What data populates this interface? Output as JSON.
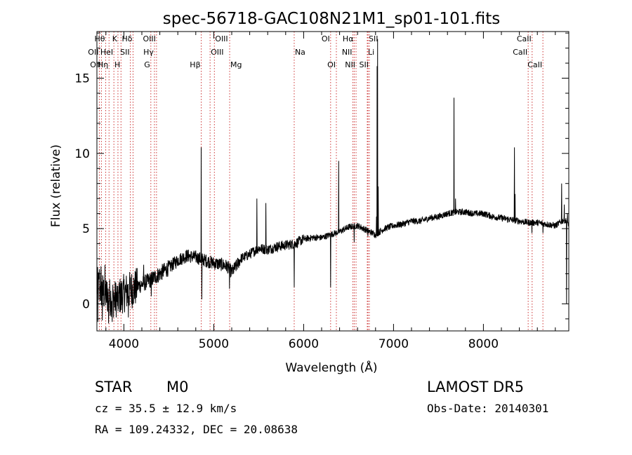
{
  "footer": {
    "object_class": "STAR",
    "subclass": "M0",
    "survey": "LAMOST DR5",
    "redshift": "cz = 35.5 ± 12.9 km/s",
    "obs_date": "Obs-Date: 20140301",
    "coords": "RA = 109.24332, DEC =  20.08638"
  },
  "chart_data": {
    "type": "line",
    "title": "spec-56718-GAC108N21M1_sp01-101.fits",
    "xlabel": "Wavelength (Å)",
    "ylabel": "Flux (relative)",
    "xlim": [
      3700,
      8950
    ],
    "ylim": [
      -1.8,
      18.1
    ],
    "x_ticks": [
      4000,
      5000,
      6000,
      7000,
      8000
    ],
    "y_ticks": [
      0,
      5,
      10,
      15
    ],
    "line_color": "#000000",
    "continuum": [
      [
        3700,
        1.2
      ],
      [
        3800,
        0.6
      ],
      [
        3900,
        0.3
      ],
      [
        4000,
        0.7
      ],
      [
        4100,
        1.0
      ],
      [
        4200,
        1.3
      ],
      [
        4300,
        1.6
      ],
      [
        4400,
        2.0
      ],
      [
        4500,
        2.4
      ],
      [
        4600,
        2.9
      ],
      [
        4700,
        3.2
      ],
      [
        4800,
        3.1
      ],
      [
        4900,
        2.9
      ],
      [
        5000,
        2.7
      ],
      [
        5100,
        2.6
      ],
      [
        5150,
        2.5
      ],
      [
        5200,
        2.1
      ],
      [
        5250,
        2.5
      ],
      [
        5300,
        3.0
      ],
      [
        5400,
        3.3
      ],
      [
        5500,
        3.7
      ],
      [
        5600,
        3.6
      ],
      [
        5700,
        3.8
      ],
      [
        5800,
        3.9
      ],
      [
        5900,
        4.0
      ],
      [
        6000,
        4.3
      ],
      [
        6100,
        4.4
      ],
      [
        6200,
        4.4
      ],
      [
        6300,
        4.6
      ],
      [
        6400,
        4.8
      ],
      [
        6500,
        5.1
      ],
      [
        6600,
        5.2
      ],
      [
        6700,
        4.9
      ],
      [
        6800,
        4.6
      ],
      [
        6900,
        5.0
      ],
      [
        7000,
        5.2
      ],
      [
        7100,
        5.3
      ],
      [
        7200,
        5.5
      ],
      [
        7300,
        5.5
      ],
      [
        7400,
        5.7
      ],
      [
        7500,
        5.8
      ],
      [
        7600,
        6.0
      ],
      [
        7700,
        6.1
      ],
      [
        7800,
        6.1
      ],
      [
        7900,
        6.0
      ],
      [
        8000,
        6.0
      ],
      [
        8100,
        5.8
      ],
      [
        8200,
        5.7
      ],
      [
        8300,
        5.6
      ],
      [
        8400,
        5.5
      ],
      [
        8500,
        5.4
      ],
      [
        8600,
        5.4
      ],
      [
        8700,
        5.3
      ],
      [
        8800,
        5.2
      ],
      [
        8900,
        5.6
      ],
      [
        8950,
        5.3
      ]
    ],
    "features": [
      {
        "x": 3710,
        "y": -1.2
      },
      {
        "x": 3728,
        "y": 2.3
      },
      {
        "x": 3745,
        "y": 2.5
      },
      {
        "x": 3760,
        "y": -1.1
      },
      {
        "x": 3790,
        "y": 2.6
      },
      {
        "x": 3830,
        "y": -1.3
      },
      {
        "x": 3870,
        "y": -1.2
      },
      {
        "x": 3935,
        "y": -0.5
      },
      {
        "x": 3970,
        "y": -0.4
      },
      {
        "x": 4050,
        "y": -0.9
      },
      {
        "x": 4220,
        "y": 2.6
      },
      {
        "x": 4304,
        "y": 0.5
      },
      {
        "x": 4861,
        "y": 10.4
      },
      {
        "x": 4868,
        "y": 0.3
      },
      {
        "x": 5175,
        "y": 1.0
      },
      {
        "x": 5480,
        "y": 7.0
      },
      {
        "x": 5580,
        "y": 6.7
      },
      {
        "x": 5895,
        "y": 1.1
      },
      {
        "x": 6300,
        "y": 1.1
      },
      {
        "x": 6390,
        "y": 9.5
      },
      {
        "x": 6563,
        "y": 4.1
      },
      {
        "x": 6715,
        "y": 4.5
      },
      {
        "x": 6810,
        "y": 5.8
      },
      {
        "x": 6817,
        "y": 15.8
      },
      {
        "x": 6822,
        "y": 17.6
      },
      {
        "x": 6829,
        "y": 7.8
      },
      {
        "x": 7672,
        "y": 13.7
      },
      {
        "x": 7690,
        "y": 7.0
      },
      {
        "x": 8345,
        "y": 10.4
      },
      {
        "x": 8352,
        "y": 7.3
      },
      {
        "x": 8540,
        "y": 4.7
      },
      {
        "x": 8662,
        "y": 4.7
      },
      {
        "x": 8870,
        "y": 8.0
      },
      {
        "x": 8900,
        "y": 6.6
      },
      {
        "x": 8925,
        "y": 0.0
      },
      {
        "x": 8935,
        "y": 6.0
      }
    ],
    "line_markers": [
      {
        "x": 3727,
        "label": "OII",
        "row": 1,
        "side": "left"
      },
      {
        "x": 3750,
        "label": "OII",
        "row": 2,
        "side": "left"
      },
      {
        "x": 3798,
        "label": "Hθ",
        "row": 0,
        "side": "left"
      },
      {
        "x": 3835,
        "label": "Hη",
        "row": 2,
        "side": "left"
      },
      {
        "x": 3889,
        "label": "HeI",
        "row": 1,
        "side": "left"
      },
      {
        "x": 3934,
        "label": "K",
        "row": 0,
        "side": "left"
      },
      {
        "x": 3968,
        "label": "H",
        "row": 2,
        "side": "left"
      },
      {
        "x": 4072,
        "label": "SII",
        "row": 1,
        "side": "left"
      },
      {
        "x": 4102,
        "label": "Hδ",
        "row": 0,
        "side": "left"
      },
      {
        "x": 4300,
        "label": "G",
        "row": 2,
        "side": "left"
      },
      {
        "x": 4340,
        "label": "Hγ",
        "row": 1,
        "side": "left"
      },
      {
        "x": 4363,
        "label": "OIII",
        "row": 0,
        "side": "left"
      },
      {
        "x": 4861,
        "label": "Hβ",
        "row": 2,
        "side": "left"
      },
      {
        "x": 4959,
        "label": "OIII",
        "row": 1,
        "side": "right"
      },
      {
        "x": 5007,
        "label": "OIII",
        "row": 0,
        "side": "right"
      },
      {
        "x": 5177,
        "label": "Mg",
        "row": 2,
        "side": "right"
      },
      {
        "x": 5895,
        "label": "Na",
        "row": 1,
        "side": "right"
      },
      {
        "x": 6300,
        "label": "OI",
        "row": 0,
        "side": "left"
      },
      {
        "x": 6364,
        "label": "OI",
        "row": 2,
        "side": "left"
      },
      {
        "x": 6548,
        "label": "NII",
        "row": 1,
        "side": "left"
      },
      {
        "x": 6563,
        "label": "Hα",
        "row": 0,
        "side": "left"
      },
      {
        "x": 6583,
        "label": "NII",
        "row": 2,
        "side": "left"
      },
      {
        "x": 6708,
        "label": "Li",
        "row": 1,
        "side": "right"
      },
      {
        "x": 6716,
        "label": "SII",
        "row": 0,
        "side": "right"
      },
      {
        "x": 6731,
        "label": "SII",
        "row": 2,
        "side": "left"
      },
      {
        "x": 8498,
        "label": "CaII",
        "row": 1,
        "side": "left"
      },
      {
        "x": 8542,
        "label": "CaII",
        "row": 0,
        "side": "left"
      },
      {
        "x": 8662,
        "label": "CaII",
        "row": 2,
        "side": "left"
      }
    ]
  }
}
